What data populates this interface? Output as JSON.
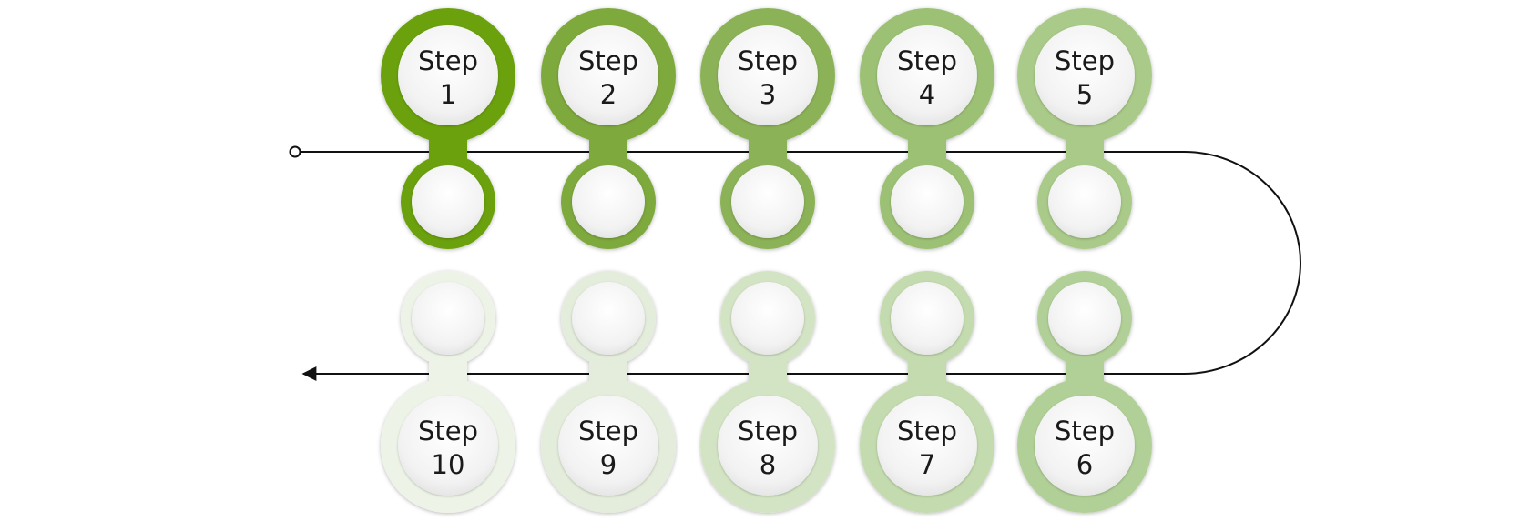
{
  "diagram": {
    "top_row": [
      {
        "line1": "Step",
        "line2": "1",
        "color": "#6ba10f"
      },
      {
        "line1": "Step",
        "line2": "2",
        "color": "#7ea93c"
      },
      {
        "line1": "Step",
        "line2": "3",
        "color": "#8cb259"
      },
      {
        "line1": "Step",
        "line2": "4",
        "color": "#9cc174"
      },
      {
        "line1": "Step",
        "line2": "5",
        "color": "#a9ca88"
      }
    ],
    "bottom_row": [
      {
        "line1": "Step",
        "line2": "10",
        "color": "#edf4e7"
      },
      {
        "line1": "Step",
        "line2": "9",
        "color": "#e4eddb"
      },
      {
        "line1": "Step",
        "line2": "8",
        "color": "#d3e4c4"
      },
      {
        "line1": "Step",
        "line2": "7",
        "color": "#c3dbae"
      },
      {
        "line1": "Step",
        "line2": "6",
        "color": "#b1d097"
      }
    ],
    "line_color": "#111111",
    "inner_fill": "#f1f1f1"
  }
}
